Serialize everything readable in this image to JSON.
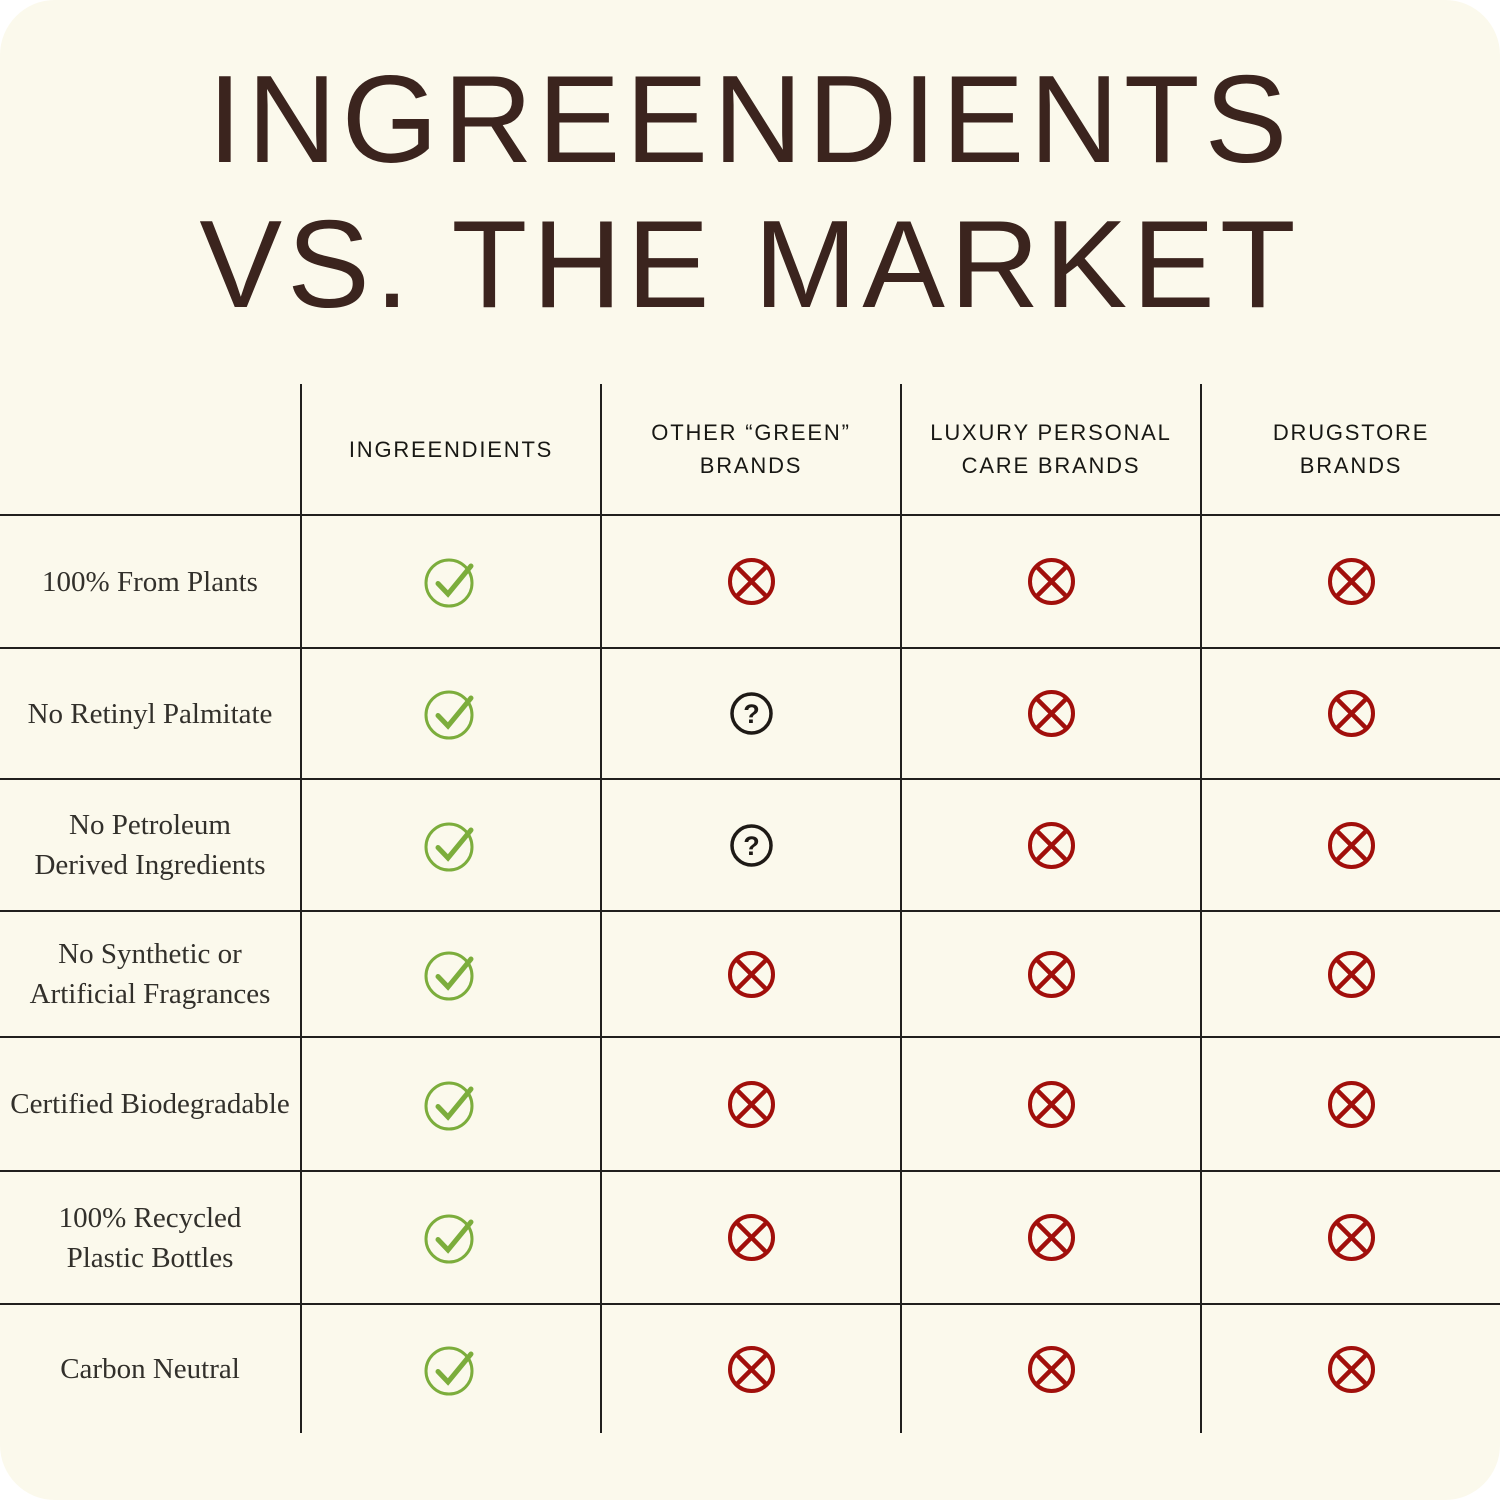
{
  "title": {
    "line1": "INGREENDIENTS",
    "line2": "VS. THE MARKET"
  },
  "table": {
    "columns": [
      "INGREENDIENTS",
      "OTHER “GREEN”\nBRANDS",
      "LUXURY PERSONAL\nCARE BRANDS",
      "DRUGSTORE\nBRANDS"
    ],
    "rows": [
      {
        "label": "100% From Plants",
        "values": [
          "check",
          "cross",
          "cross",
          "cross"
        ]
      },
      {
        "label": "No Retinyl Palmitate",
        "values": [
          "check",
          "question",
          "cross",
          "cross"
        ]
      },
      {
        "label": "No Petroleum\nDerived Ingredients",
        "values": [
          "check",
          "question",
          "cross",
          "cross"
        ]
      },
      {
        "label": "No Synthetic or\nArtificial Fragrances",
        "values": [
          "check",
          "cross",
          "cross",
          "cross"
        ]
      },
      {
        "label": "Certified Biodegradable",
        "values": [
          "check",
          "cross",
          "cross",
          "cross"
        ]
      },
      {
        "label": "100% Recycled\nPlastic Bottles",
        "values": [
          "check",
          "cross",
          "cross",
          "cross"
        ]
      },
      {
        "label": "Carbon Neutral",
        "values": [
          "check",
          "cross",
          "cross",
          "cross"
        ]
      }
    ],
    "colors": {
      "check": "#7CAD3C",
      "cross": "#A10F0B",
      "question": "#1E1A16"
    }
  },
  "chart_data": {
    "type": "table",
    "title": "INGREENDIENTS VS. THE MARKET",
    "columns": [
      "",
      "INGREENDIENTS",
      "OTHER “GREEN” BRANDS",
      "LUXURY PERSONAL CARE BRANDS",
      "DRUGSTORE BRANDS"
    ],
    "rows": [
      [
        "100% From Plants",
        "yes",
        "no",
        "no",
        "no"
      ],
      [
        "No Retinyl Palmitate",
        "yes",
        "unknown",
        "no",
        "no"
      ],
      [
        "No Petroleum Derived Ingredients",
        "yes",
        "unknown",
        "no",
        "no"
      ],
      [
        "No Synthetic or Artificial Fragrances",
        "yes",
        "no",
        "no",
        "no"
      ],
      [
        "Certified Biodegradable",
        "yes",
        "no",
        "no",
        "no"
      ],
      [
        "100% Recycled Plastic Bottles",
        "yes",
        "no",
        "no",
        "no"
      ],
      [
        "Carbon Neutral",
        "yes",
        "no",
        "no",
        "no"
      ]
    ],
    "symbols": {
      "yes": "green circled check",
      "no": "red circled x",
      "unknown": "black circled question mark"
    }
  }
}
